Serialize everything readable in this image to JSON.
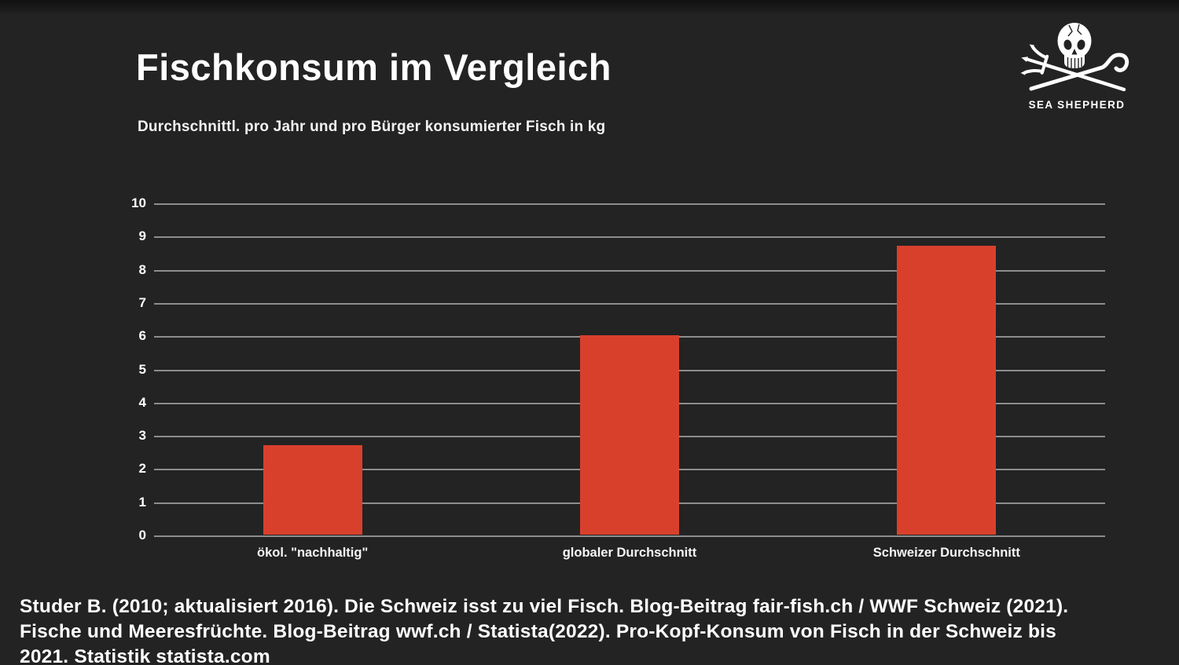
{
  "meta": {
    "background_color": "#232323",
    "bar_color": "#d8402c",
    "grid_color": "#8d8d8d",
    "text_color": "#ffffff"
  },
  "header": {
    "title": "Fischkonsum im Vergleich",
    "subtitle": "Durchschnittl. pro Jahr und pro Bürger konsumierter Fisch in kg"
  },
  "logo": {
    "icon": "sea-shepherd-skull-crossed-trident-and-crook",
    "wordmark": "SEA SHEPHERD"
  },
  "chart_data": {
    "type": "bar",
    "categories": [
      "ökol. \"nachhaltig\"",
      "globaler Durchschnitt",
      "Schweizer Durchschnitt"
    ],
    "values": [
      2.7,
      6,
      8.7
    ],
    "title": "Fischkonsum im Vergleich",
    "subtitle": "Durchschnittl. pro Jahr und pro Bürger konsumierter Fisch in kg",
    "xlabel": "",
    "ylabel": "",
    "ylim": [
      0,
      10
    ],
    "ytick_step": 1,
    "grid": true,
    "legend": "none",
    "bar_color": "#d8402c"
  },
  "footer": {
    "lines": [
      "Studer B. (2010; aktualisiert 2016). Die Schweiz isst zu viel Fisch. Blog-Beitrag fair-fish.ch / WWF Schweiz (2021).",
      "Fische und Meeresfrüchte. Blog-Beitrag wwf.ch / Statista(2022). Pro-Kopf-Konsum von Fisch in der Schweiz bis",
      "2021. Statistik statista.com"
    ]
  }
}
